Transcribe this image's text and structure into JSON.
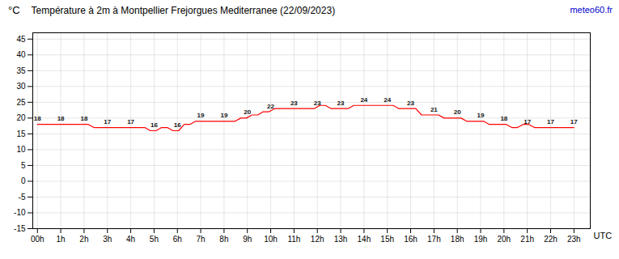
{
  "chart_data": {
    "type": "line",
    "title": "Température à 2m à Montpellier Frejorgues Mediterranee (22/09/2023)",
    "ylabel": "°C",
    "xlabel": "UTC",
    "x": [
      0,
      0.2421,
      0.4842,
      0.7263,
      0.9684,
      1.2105,
      1.4526,
      1.6947,
      1.9368,
      2.1789,
      2.4211,
      2.6632,
      2.9053,
      3.1474,
      3.3895,
      3.6316,
      3.8737,
      4.1158,
      4.3579,
      4.6,
      4.8421,
      5.0842,
      5.3263,
      5.5684,
      5.8105,
      6.0526,
      6.2947,
      6.5368,
      6.7789,
      7.0211,
      7.2632,
      7.5053,
      7.7474,
      7.9895,
      8.2316,
      8.4737,
      8.7158,
      8.9579,
      9.2,
      9.4421,
      9.6842,
      9.9263,
      10.1684,
      10.4105,
      10.6526,
      10.8947,
      11.1368,
      11.3789,
      11.6211,
      11.8632,
      12.1053,
      12.3474,
      12.5895,
      12.8316,
      13.0737,
      13.3158,
      13.5579,
      13.8,
      14.0421,
      14.2842,
      14.5263,
      14.7684,
      15.0105,
      15.2526,
      15.4947,
      15.7368,
      15.9789,
      16.2211,
      16.4632,
      16.7053,
      16.9474,
      17.1895,
      17.4316,
      17.6737,
      17.9158,
      18.1579,
      18.4,
      18.6421,
      18.8842,
      19.1263,
      19.3684,
      19.6105,
      19.8526,
      20.0947,
      20.3368,
      20.5789,
      20.8211,
      21.0632,
      21.3053,
      21.5474,
      21.7895,
      22.0316,
      22.2737,
      22.5158,
      22.7579,
      23
    ],
    "values": [
      18,
      18,
      18,
      18,
      18,
      18,
      18,
      18,
      18,
      18,
      17,
      17,
      17,
      17,
      17,
      17,
      17,
      17,
      17,
      17,
      16,
      16,
      17,
      17,
      16,
      16,
      18,
      18,
      19,
      19,
      19,
      19,
      19,
      19,
      19,
      19,
      20,
      20,
      21,
      21,
      22,
      22,
      23,
      23,
      23,
      23,
      23,
      23,
      23,
      23,
      24,
      24,
      23,
      23,
      23,
      23,
      24,
      24,
      24,
      24,
      24,
      24,
      24,
      24,
      23,
      23,
      23,
      23,
      21,
      21,
      21,
      21,
      20,
      20,
      20,
      20,
      19,
      19,
      19,
      19,
      18,
      18,
      18,
      18,
      17,
      17,
      18,
      18,
      17,
      17,
      17,
      17,
      17,
      17,
      17,
      17
    ],
    "color": "#ff0000",
    "xlim": [
      -0.2,
      23.7
    ],
    "xticks": [
      {
        "value": 0,
        "label": "00h"
      },
      {
        "value": 1,
        "label": "1h"
      },
      {
        "value": 2,
        "label": "2h"
      },
      {
        "value": 3,
        "label": "3h"
      },
      {
        "value": 4,
        "label": "4h"
      },
      {
        "value": 5,
        "label": "5h"
      },
      {
        "value": 6,
        "label": "6h"
      },
      {
        "value": 7,
        "label": "7h"
      },
      {
        "value": 8,
        "label": "8h"
      },
      {
        "value": 9,
        "label": "9h"
      },
      {
        "value": 10,
        "label": "10h"
      },
      {
        "value": 11,
        "label": "11h"
      },
      {
        "value": 12,
        "label": "12h"
      },
      {
        "value": 13,
        "label": "13h"
      },
      {
        "value": 14,
        "label": "14h"
      },
      {
        "value": 15,
        "label": "15h"
      },
      {
        "value": 16,
        "label": "16h"
      },
      {
        "value": 17,
        "label": "17h"
      },
      {
        "value": 18,
        "label": "18h"
      },
      {
        "value": 19,
        "label": "19h"
      },
      {
        "value": 20,
        "label": "20h"
      },
      {
        "value": 21,
        "label": "21h"
      },
      {
        "value": 22,
        "label": "22h"
      },
      {
        "value": 23,
        "label": "23h"
      }
    ],
    "ylim": [
      -15,
      47
    ],
    "yticks": [
      -15,
      -10,
      -5,
      0,
      5,
      10,
      15,
      20,
      25,
      30,
      35,
      40,
      45
    ],
    "grid": true,
    "labels": [
      {
        "x": 0,
        "y": 18,
        "text": "18"
      },
      {
        "x": 1,
        "y": 18,
        "text": "18"
      },
      {
        "x": 2,
        "y": 18,
        "text": "18"
      },
      {
        "x": 3,
        "y": 17,
        "text": "17"
      },
      {
        "x": 4,
        "y": 17,
        "text": "17"
      },
      {
        "x": 5,
        "y": 16,
        "text": "16"
      },
      {
        "x": 6,
        "y": 16,
        "text": "16"
      },
      {
        "x": 7,
        "y": 19,
        "text": "19"
      },
      {
        "x": 8,
        "y": 19,
        "text": "19"
      },
      {
        "x": 9,
        "y": 20,
        "text": "20"
      },
      {
        "x": 10,
        "y": 22,
        "text": "22"
      },
      {
        "x": 11,
        "y": 23,
        "text": "23"
      },
      {
        "x": 12,
        "y": 23,
        "text": "23"
      },
      {
        "x": 13,
        "y": 23,
        "text": "23"
      },
      {
        "x": 14,
        "y": 24,
        "text": "24"
      },
      {
        "x": 15,
        "y": 24,
        "text": "24"
      },
      {
        "x": 16,
        "y": 23,
        "text": "23"
      },
      {
        "x": 17,
        "y": 21,
        "text": "21"
      },
      {
        "x": 18,
        "y": 20,
        "text": "20"
      },
      {
        "x": 19,
        "y": 19,
        "text": "19"
      },
      {
        "x": 20,
        "y": 18,
        "text": "18"
      },
      {
        "x": 21,
        "y": 17,
        "text": "17"
      },
      {
        "x": 22,
        "y": 17,
        "text": "17"
      },
      {
        "x": 23,
        "y": 17,
        "text": "17"
      }
    ],
    "watermark": {
      "text": "meteo60.fr",
      "color": "#0000cc"
    }
  }
}
